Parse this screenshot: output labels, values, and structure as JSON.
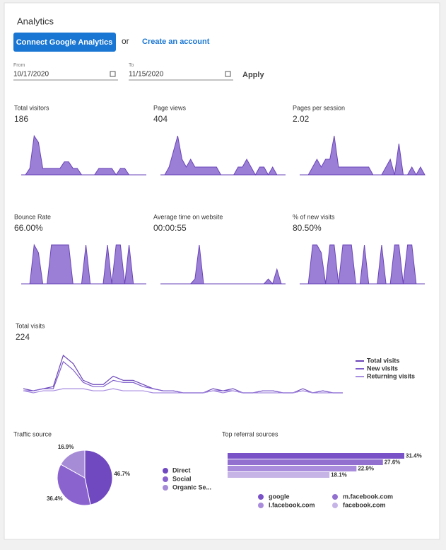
{
  "header": {
    "title": "Analytics"
  },
  "actions": {
    "connect": "Connect Google Analytics",
    "or": "or",
    "create": "Create an account"
  },
  "date_range": {
    "from_label": "From",
    "from": "10/17/2020",
    "to_label": "To",
    "to": "11/15/2020",
    "apply": "Apply"
  },
  "metrics": [
    {
      "label": "Total visitors",
      "value": "186",
      "trend": [
        0,
        0,
        1,
        6,
        5,
        1,
        1,
        1,
        1,
        1,
        2,
        2,
        1,
        1,
        0,
        0,
        0,
        0,
        1,
        1,
        1,
        1,
        0,
        1,
        1,
        0,
        0,
        0,
        0,
        0
      ]
    },
    {
      "label": "Page views",
      "value": "404",
      "trend": [
        0,
        0,
        1,
        3,
        5,
        2,
        1,
        2,
        1,
        1,
        1,
        1,
        1,
        1,
        0,
        0,
        0,
        0,
        1,
        1,
        2,
        1,
        0,
        1,
        1,
        0,
        1,
        0,
        0,
        0
      ]
    },
    {
      "label": "Pages per session",
      "value": "2.02",
      "trend": [
        0,
        0,
        0,
        1,
        2,
        1,
        2,
        2,
        5,
        1,
        1,
        1,
        1,
        1,
        1,
        1,
        1,
        0,
        0,
        0,
        1,
        2,
        0,
        4,
        0,
        0,
        1,
        0,
        1,
        0
      ]
    },
    {
      "label": "Bounce Rate",
      "value": "66.00%",
      "trend": [
        0,
        0,
        0,
        100,
        80,
        0,
        0,
        100,
        100,
        100,
        100,
        100,
        0,
        0,
        0,
        100,
        0,
        0,
        0,
        0,
        100,
        0,
        100,
        100,
        0,
        100,
        0,
        0,
        0,
        0
      ]
    },
    {
      "label": "Average time on website",
      "value": "00:00:55",
      "trend": [
        0,
        0,
        0,
        0,
        0,
        0,
        0,
        0,
        1,
        8,
        0,
        0,
        0,
        0,
        0,
        0,
        0,
        0,
        0,
        0,
        0,
        0,
        0,
        0,
        0,
        1,
        0,
        3,
        0,
        0
      ]
    },
    {
      "label": "% of new visits",
      "value": "80.50%",
      "trend": [
        0,
        0,
        0,
        100,
        100,
        80,
        0,
        100,
        100,
        0,
        100,
        100,
        100,
        0,
        0,
        100,
        0,
        0,
        0,
        100,
        0,
        0,
        100,
        100,
        0,
        100,
        100,
        0,
        0,
        0
      ]
    }
  ],
  "total_visits": {
    "label": "Total visits",
    "value": "224",
    "series": [
      {
        "name": "Total visits",
        "color": "#6a45b8",
        "values": [
          2,
          1,
          2,
          3,
          18,
          14,
          6,
          4,
          4,
          8,
          6,
          6,
          4,
          2,
          1,
          1,
          0,
          0,
          0,
          2,
          1,
          2,
          0,
          0,
          1,
          1,
          0,
          0,
          2,
          0,
          1,
          0,
          0
        ]
      },
      {
        "name": "New visits",
        "color": "#7e5ccc",
        "values": [
          1,
          1,
          2,
          2,
          15,
          11,
          5,
          3,
          3,
          6,
          5,
          5,
          3,
          2,
          1,
          1,
          0,
          0,
          0,
          1,
          1,
          1,
          0,
          0,
          1,
          1,
          0,
          0,
          1,
          0,
          1,
          0,
          0
        ]
      },
      {
        "name": "Returning visits",
        "color": "#a88ee0",
        "values": [
          1,
          0,
          1,
          1,
          2,
          2,
          2,
          1,
          1,
          2,
          1,
          1,
          1,
          0,
          0,
          0,
          0,
          0,
          0,
          1,
          0,
          1,
          0,
          0,
          0,
          0,
          0,
          0,
          1,
          0,
          0,
          0,
          0
        ]
      }
    ]
  },
  "traffic_source": {
    "type": "pie",
    "title": "Traffic source",
    "categories": [
      "Direct",
      "Social",
      "Organic Se..."
    ],
    "values": [
      46.7,
      36.4,
      16.9
    ],
    "value_labels": [
      "46.7%",
      "36.4%",
      "16.9%"
    ],
    "colors": [
      "#7048c0",
      "#8a63cf",
      "#a68bd6"
    ]
  },
  "referrals": {
    "type": "bar",
    "title": "Top referral sources",
    "categories": [
      "google",
      "m.facebook.com",
      "l.facebook.com",
      "facebook.com"
    ],
    "values": [
      31.4,
      27.6,
      22.9,
      18.1
    ],
    "value_labels": [
      "31.4%",
      "27.6%",
      "22.9%",
      "18.1%"
    ],
    "colors": [
      "#7a52c7",
      "#9270d0",
      "#a98cdb",
      "#c6b4e6"
    ]
  }
}
